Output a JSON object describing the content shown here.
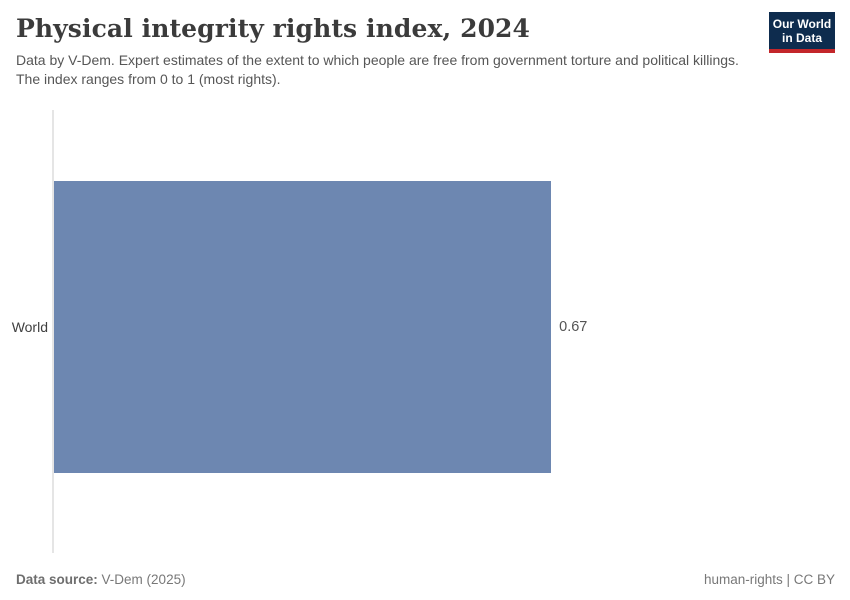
{
  "header": {
    "title": "Physical integrity rights index, 2024",
    "subtitle": "Data by V-Dem. Expert estimates of the extent to which people are free from government torture and political killings. The index ranges from 0 to 1 (most rights).",
    "logo": {
      "line1": "Our World",
      "line2": "in Data",
      "bg_color": "#0e2c4e",
      "stripe_color": "#c3262a",
      "text_color": "#ffffff"
    }
  },
  "chart_data": {
    "type": "bar",
    "orientation": "horizontal",
    "title": "Physical integrity rights index, 2024",
    "categories": [
      "World"
    ],
    "values": [
      0.67
    ],
    "value_labels": [
      "0.67"
    ],
    "xlim": [
      0,
      1
    ],
    "grid": false,
    "legend": false,
    "colors": {
      "bar": "#6d87b1",
      "axis_line": "#e5e5e5",
      "value_text": "#545454",
      "category_text": "#3f3f3f"
    }
  },
  "footer": {
    "source_label": "Data source:",
    "source_value": "V-Dem (2025)",
    "license": "human-rights | CC BY"
  }
}
